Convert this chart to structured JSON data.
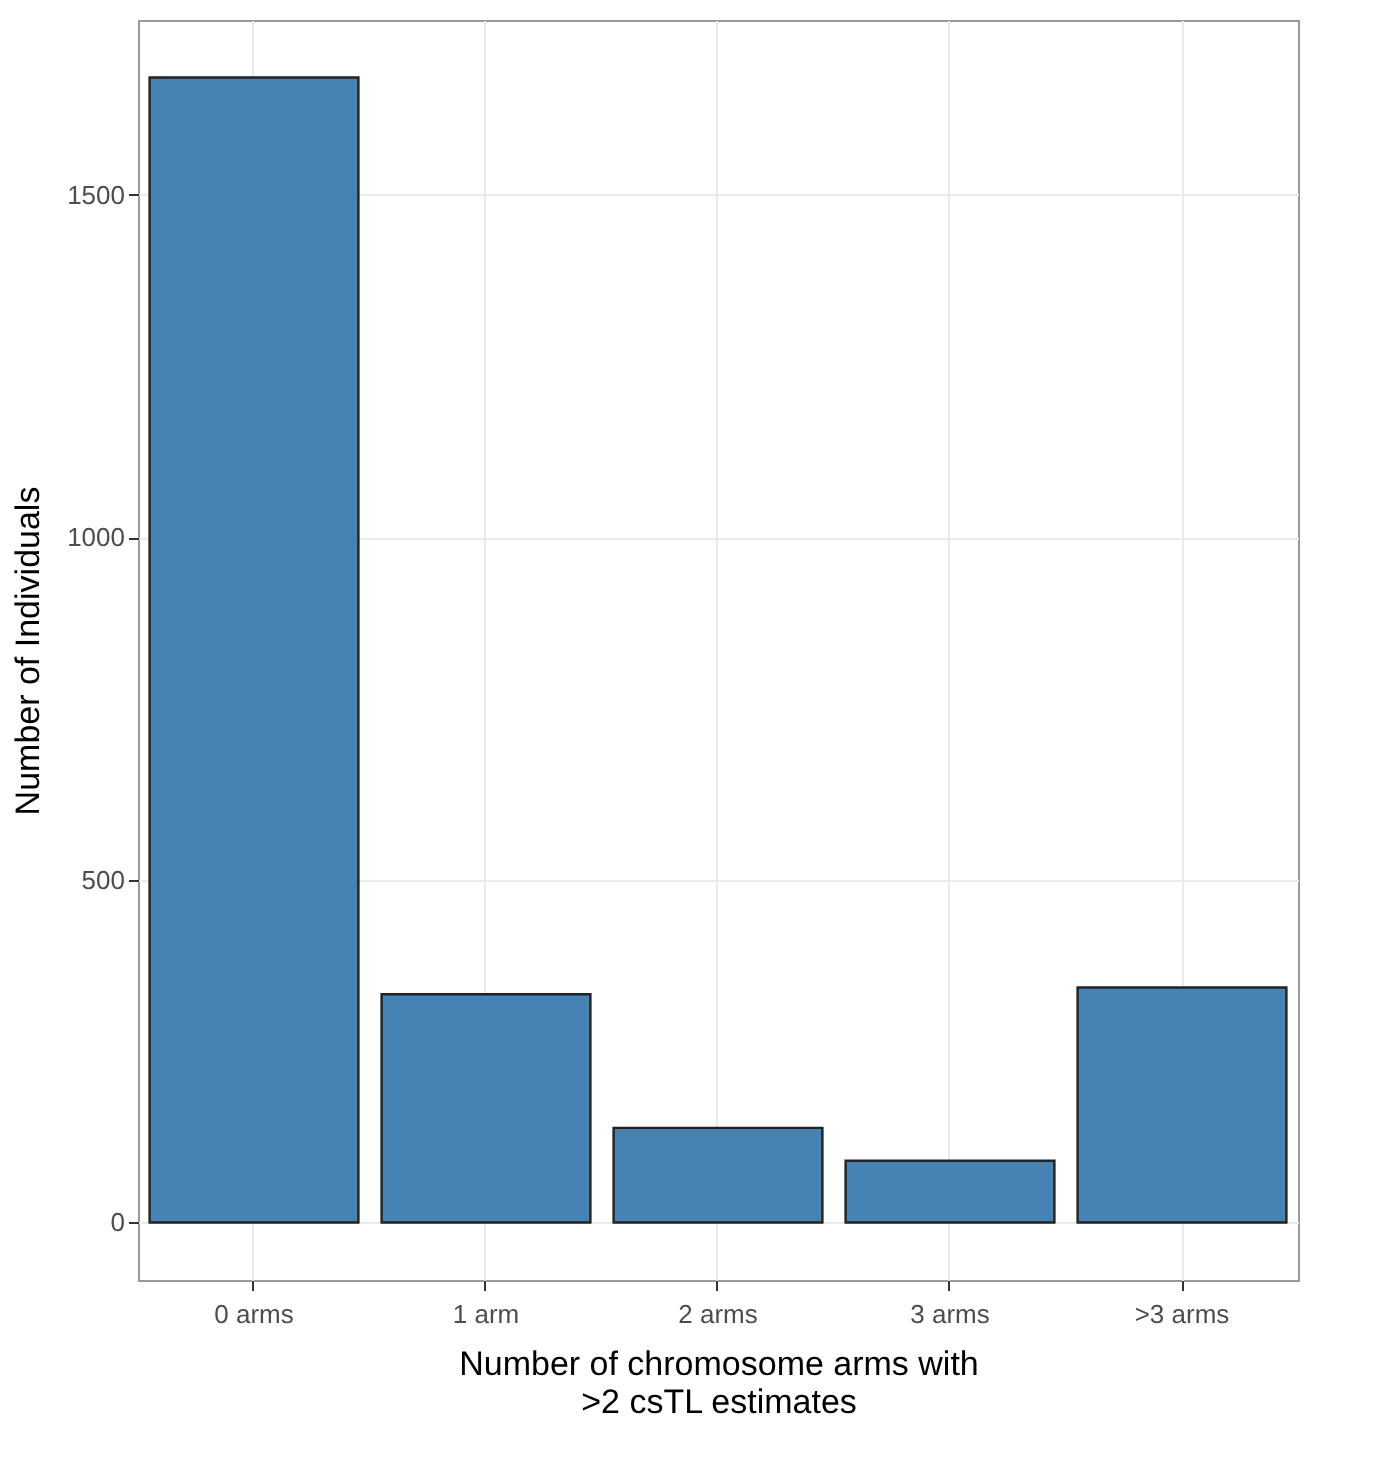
{
  "chart_data": {
    "type": "bar",
    "xlabel": "Number of chromosome arms with\n>2 csTL estimates",
    "ylabel": "Number of Individuals",
    "categories": [
      "0 arms",
      "1 arm",
      "2 arms",
      "3 arms",
      ">3 arms"
    ],
    "values": [
      1671,
      333,
      138,
      90,
      343
    ],
    "color": "#4682b4",
    "ylim": [
      -84,
      1755
    ],
    "yticks": [
      0,
      500,
      1000,
      1500
    ],
    "grid": true
  }
}
